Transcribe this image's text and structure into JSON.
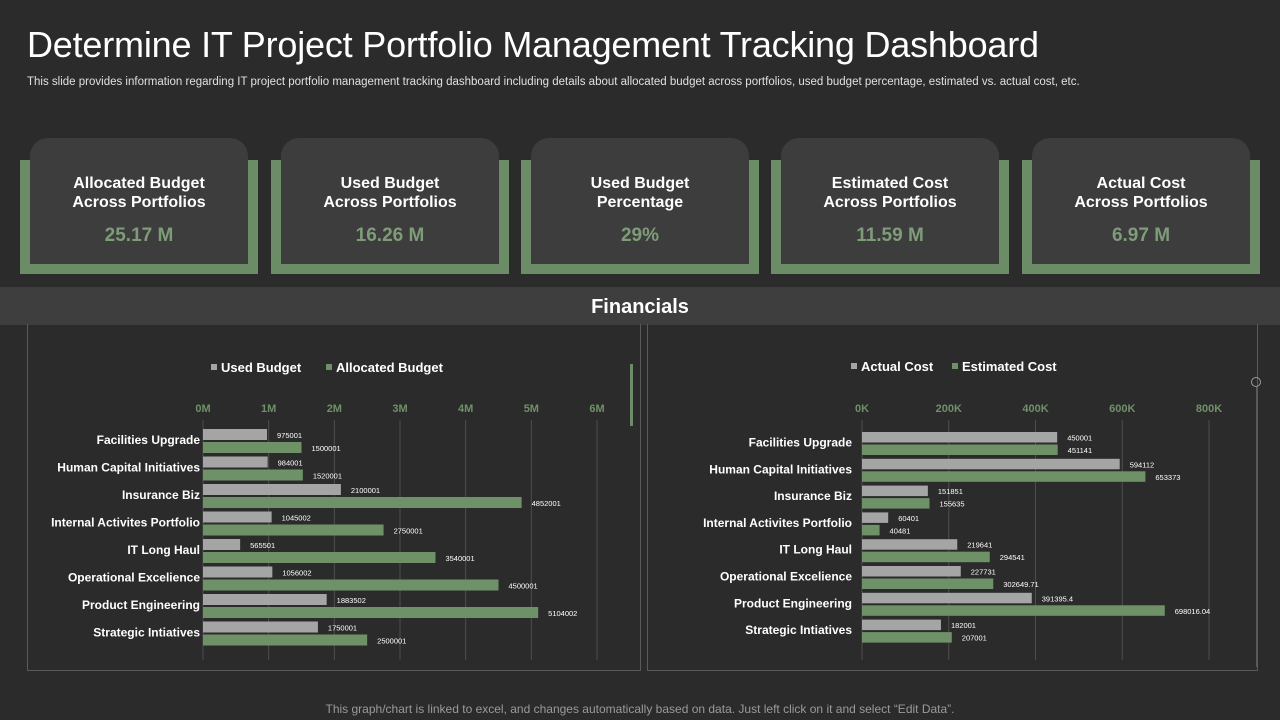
{
  "header": {
    "title": "Determine IT Project Portfolio Management Tracking Dashboard",
    "subtitle": "This slide provides information regarding IT project portfolio management tracking dashboard including details about allocated budget across portfolios, used budget percentage, estimated vs. actual cost, etc."
  },
  "kpis": [
    {
      "label": "Allocated Budget\nAcross  Portfolios",
      "value": "25.17 M"
    },
    {
      "label": "Used Budget\nAcross  Portfolios",
      "value": "16.26 M"
    },
    {
      "label": "Used Budget\nPercentage",
      "value": "29%"
    },
    {
      "label": "Estimated Cost\nAcross  Portfolios",
      "value": "11.59 M"
    },
    {
      "label": "Actual Cost\nAcross  Portfolios",
      "value": "6.97 M"
    }
  ],
  "section_title": "Financials",
  "footer": "This graph/chart is linked to excel,  and changes automatically based on data. Just left click on it and select “Edit Data”.",
  "colors": {
    "gray_series": "#a5a5a5",
    "green_series": "#6f9168",
    "axis_label": "#6f9168",
    "card": "#3d3d3d"
  },
  "chart_data": [
    {
      "type": "bar",
      "orientation": "horizontal",
      "categories": [
        "Facilities Upgrade",
        "Human Capital Initiatives",
        "Insurance Biz",
        "Internal Activites Portfolio",
        "IT Long Haul",
        "Operational Excelience",
        "Product Engineering",
        "Strategic Intiatives"
      ],
      "series": [
        {
          "name": "Used Budget",
          "color": "#a5a5a5",
          "values": [
            975001,
            984001,
            2100001,
            1045002,
            565501,
            1056002,
            1883502,
            1750001
          ],
          "labels": [
            "975001",
            "984001",
            "2100001",
            "1045002",
            "565501",
            "1056002",
            "1883502",
            "1750001"
          ]
        },
        {
          "name": "Allocated Budget",
          "color": "#6f9168",
          "values": [
            1500001,
            1520001,
            4852001,
            2750001,
            3540001,
            4500001,
            5104002,
            2500001
          ],
          "labels": [
            "1500001",
            "1520001",
            "4852001",
            "2750001",
            "3540001",
            "4500001",
            "5104002",
            "2500001"
          ]
        }
      ],
      "xlim": [
        0,
        6000000
      ],
      "ticks": [
        0,
        1000000,
        2000000,
        3000000,
        4000000,
        5000000,
        6000000
      ],
      "tick_labels": [
        "0M",
        "1M",
        "2M",
        "3M",
        "4M",
        "5M",
        "6M"
      ],
      "grid": true,
      "legend": "top"
    },
    {
      "type": "bar",
      "orientation": "horizontal",
      "categories": [
        "Facilities Upgrade",
        "Human Capital Initiatives",
        "Insurance Biz",
        "Internal Activites Portfolio",
        "IT Long Haul",
        "Operational Excelience",
        "Product Engineering",
        "Strategic Intiatives"
      ],
      "series": [
        {
          "name": "Actual Cost",
          "color": "#a5a5a5",
          "values": [
            450001,
            594112,
            151851,
            60401,
            219641,
            227731,
            391395.4,
            182001
          ],
          "labels": [
            "450001",
            "594112",
            "151851",
            "60401",
            "219641",
            "227731",
            "391395.4",
            "182001"
          ]
        },
        {
          "name": "Estimated Cost",
          "color": "#6f9168",
          "values": [
            451141,
            653373,
            155635,
            40481,
            294541,
            302649.71,
            698016.04,
            207001
          ],
          "labels": [
            "451141",
            "653373",
            "155635",
            "40481",
            "294541",
            "302649.71",
            "698016.04",
            "207001"
          ]
        }
      ],
      "xlim": [
        0,
        800000
      ],
      "ticks": [
        0,
        200000,
        400000,
        600000,
        800000
      ],
      "tick_labels": [
        "0K",
        "200K",
        "400K",
        "600K",
        "800K"
      ],
      "grid": true,
      "legend": "top"
    }
  ]
}
